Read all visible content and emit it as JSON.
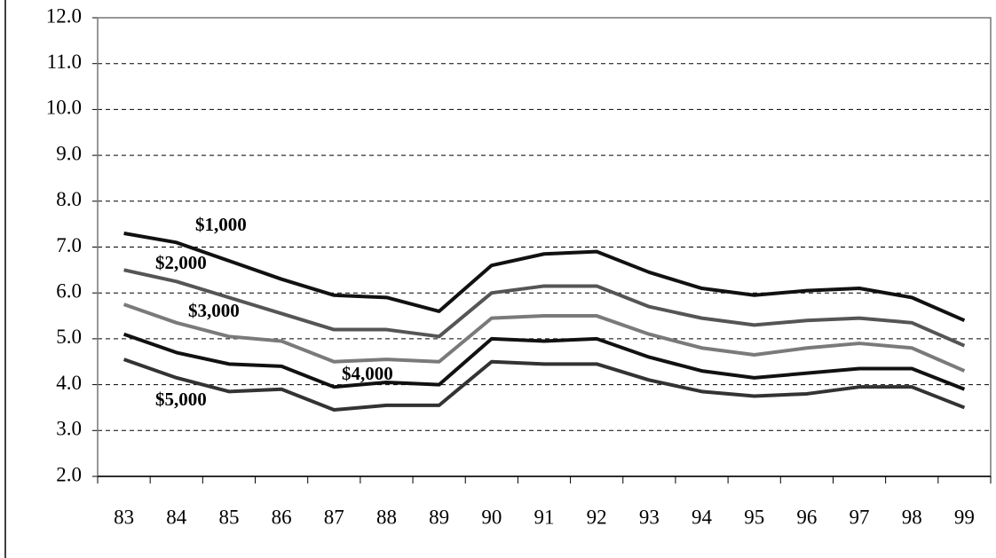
{
  "chart_data": {
    "type": "line",
    "categories": [
      "83",
      "84",
      "85",
      "86",
      "87",
      "88",
      "89",
      "90",
      "91",
      "92",
      "93",
      "94",
      "95",
      "96",
      "97",
      "98",
      "99"
    ],
    "series": [
      {
        "name": "$1,000",
        "color": "#111111",
        "values": [
          7.3,
          7.1,
          6.7,
          6.3,
          5.95,
          5.9,
          5.6,
          6.6,
          6.85,
          6.9,
          6.45,
          6.1,
          5.95,
          6.05,
          6.1,
          5.9,
          5.4
        ]
      },
      {
        "name": "$2,000",
        "color": "#555555",
        "values": [
          6.5,
          6.25,
          5.9,
          5.55,
          5.2,
          5.2,
          5.05,
          6.0,
          6.15,
          6.15,
          5.7,
          5.45,
          5.3,
          5.4,
          5.45,
          5.35,
          4.85
        ]
      },
      {
        "name": "$3,000",
        "color": "#7a7a7a",
        "values": [
          5.75,
          5.35,
          5.05,
          4.95,
          4.5,
          4.55,
          4.5,
          5.45,
          5.5,
          5.5,
          5.1,
          4.8,
          4.65,
          4.8,
          4.9,
          4.8,
          4.3
        ]
      },
      {
        "name": "$4,000",
        "color": "#111111",
        "values": [
          5.1,
          4.7,
          4.45,
          4.4,
          3.95,
          4.05,
          4.0,
          5.0,
          4.95,
          5.0,
          4.6,
          4.3,
          4.15,
          4.25,
          4.35,
          4.35,
          3.9
        ]
      },
      {
        "name": "$5,000",
        "color": "#333333",
        "values": [
          4.55,
          4.15,
          3.85,
          3.9,
          3.45,
          3.55,
          3.55,
          4.5,
          4.45,
          4.45,
          4.1,
          3.85,
          3.75,
          3.8,
          3.95,
          3.95,
          3.5
        ]
      }
    ],
    "ylim": [
      2,
      12
    ],
    "yticks": [
      {
        "value": 2,
        "label": "2.0"
      },
      {
        "value": 3,
        "label": "3.0"
      },
      {
        "value": 4,
        "label": "4.0"
      },
      {
        "value": 5,
        "label": "5.0"
      },
      {
        "value": 6,
        "label": "6.0"
      },
      {
        "value": 7,
        "label": "7.0"
      },
      {
        "value": 8,
        "label": "8.0"
      },
      {
        "value": 9,
        "label": "9.0"
      },
      {
        "value": 10,
        "label": "10.0"
      },
      {
        "value": 11,
        "label": "11.0"
      },
      {
        "value": 12,
        "label": "12.0"
      }
    ],
    "grid": true
  }
}
